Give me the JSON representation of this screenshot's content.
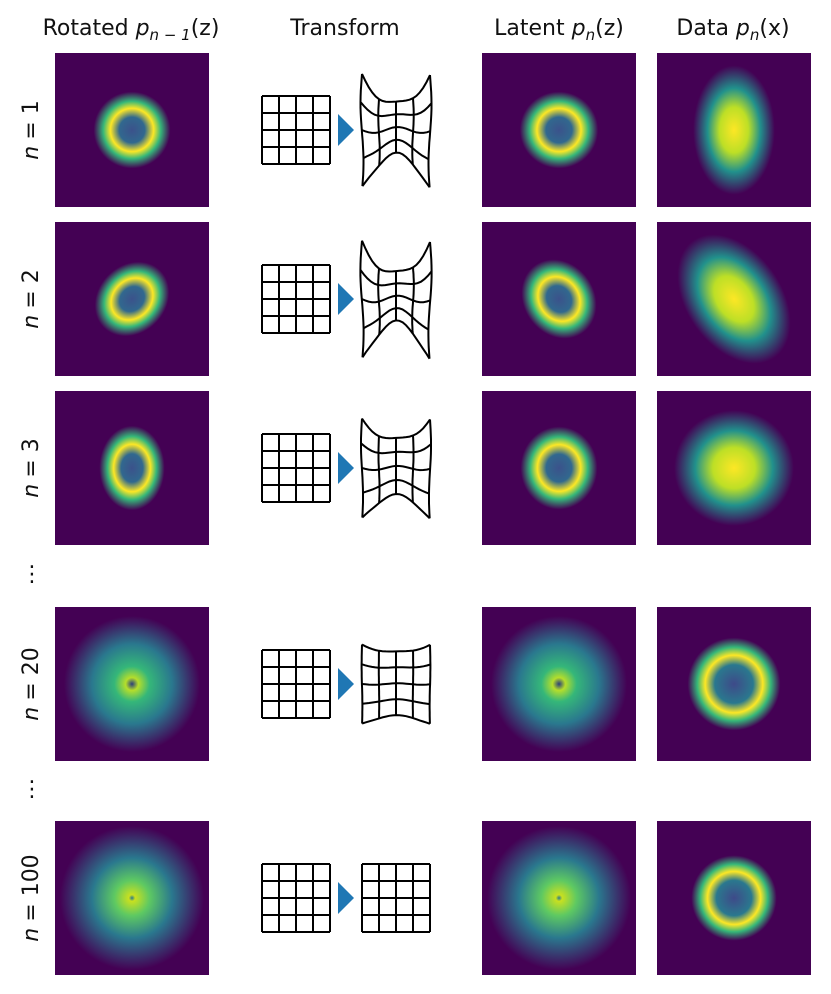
{
  "columns": [
    {
      "prefix": "Rotated",
      "var": "p",
      "sub": "n − 1",
      "arg": "(z)"
    },
    {
      "text": "Transform"
    },
    {
      "prefix": "Latent",
      "var": "p",
      "sub": "n",
      "arg": "(z)"
    },
    {
      "prefix": "Data",
      "var": "p",
      "sub": "n",
      "arg": "(x)"
    }
  ],
  "rows": [
    {
      "var": "n",
      "eq": "= 1"
    },
    {
      "var": "n",
      "eq": "= 2"
    },
    {
      "var": "n",
      "eq": "= 3"
    },
    {
      "var": "n",
      "eq": "= 20"
    },
    {
      "var": "n",
      "eq": "= 100"
    }
  ],
  "ellipses": [
    "⋮",
    "⋮"
  ]
}
